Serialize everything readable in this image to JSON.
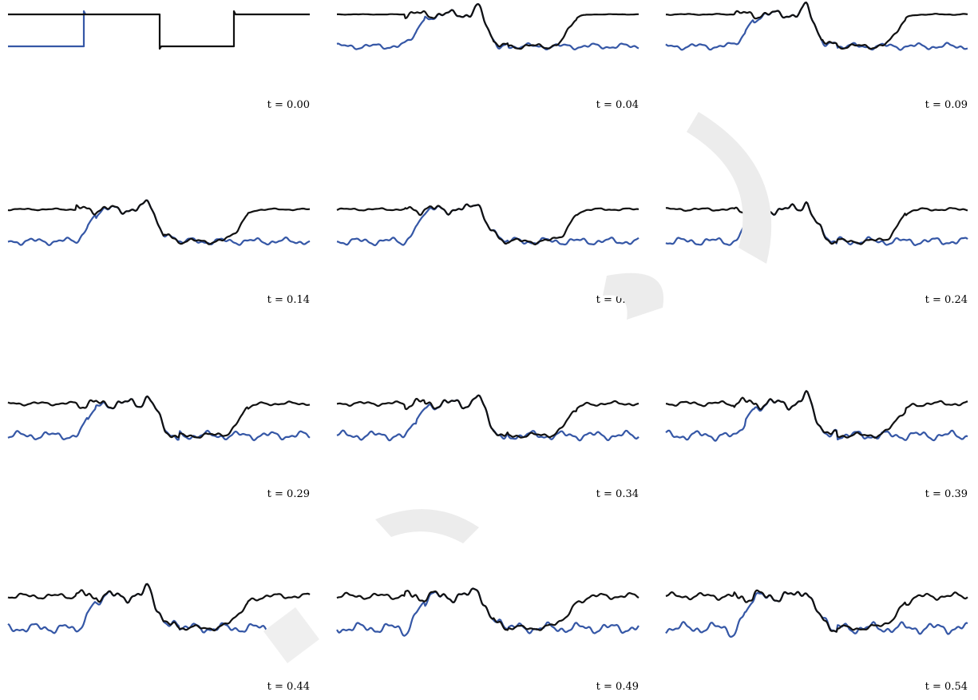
{
  "figure": {
    "watermark_color": "#e9e9e9"
  },
  "chart_data": {
    "type": "line",
    "grid": false,
    "legend": "none",
    "colors": {
      "black_series": "#111111",
      "blue_series": "#3557a6"
    },
    "panels": [
      {
        "t": "0.00",
        "label": "t = 0.00"
      },
      {
        "t": "0.04",
        "label": "t = 0.04"
      },
      {
        "t": "0.09",
        "label": "t = 0.09"
      },
      {
        "t": "0.14",
        "label": "t = 0.14"
      },
      {
        "t": "0.19",
        "label": "t = 0.19"
      },
      {
        "t": "0.24",
        "label": "t = 0.24"
      },
      {
        "t": "0.29",
        "label": "t = 0.29"
      },
      {
        "t": "0.34",
        "label": "t = 0.34"
      },
      {
        "t": "0.39",
        "label": "t = 0.39"
      },
      {
        "t": "0.44",
        "label": "t = 0.44"
      },
      {
        "t": "0.49",
        "label": "t = 0.49"
      },
      {
        "t": "0.54",
        "label": "t = 0.54"
      }
    ]
  }
}
